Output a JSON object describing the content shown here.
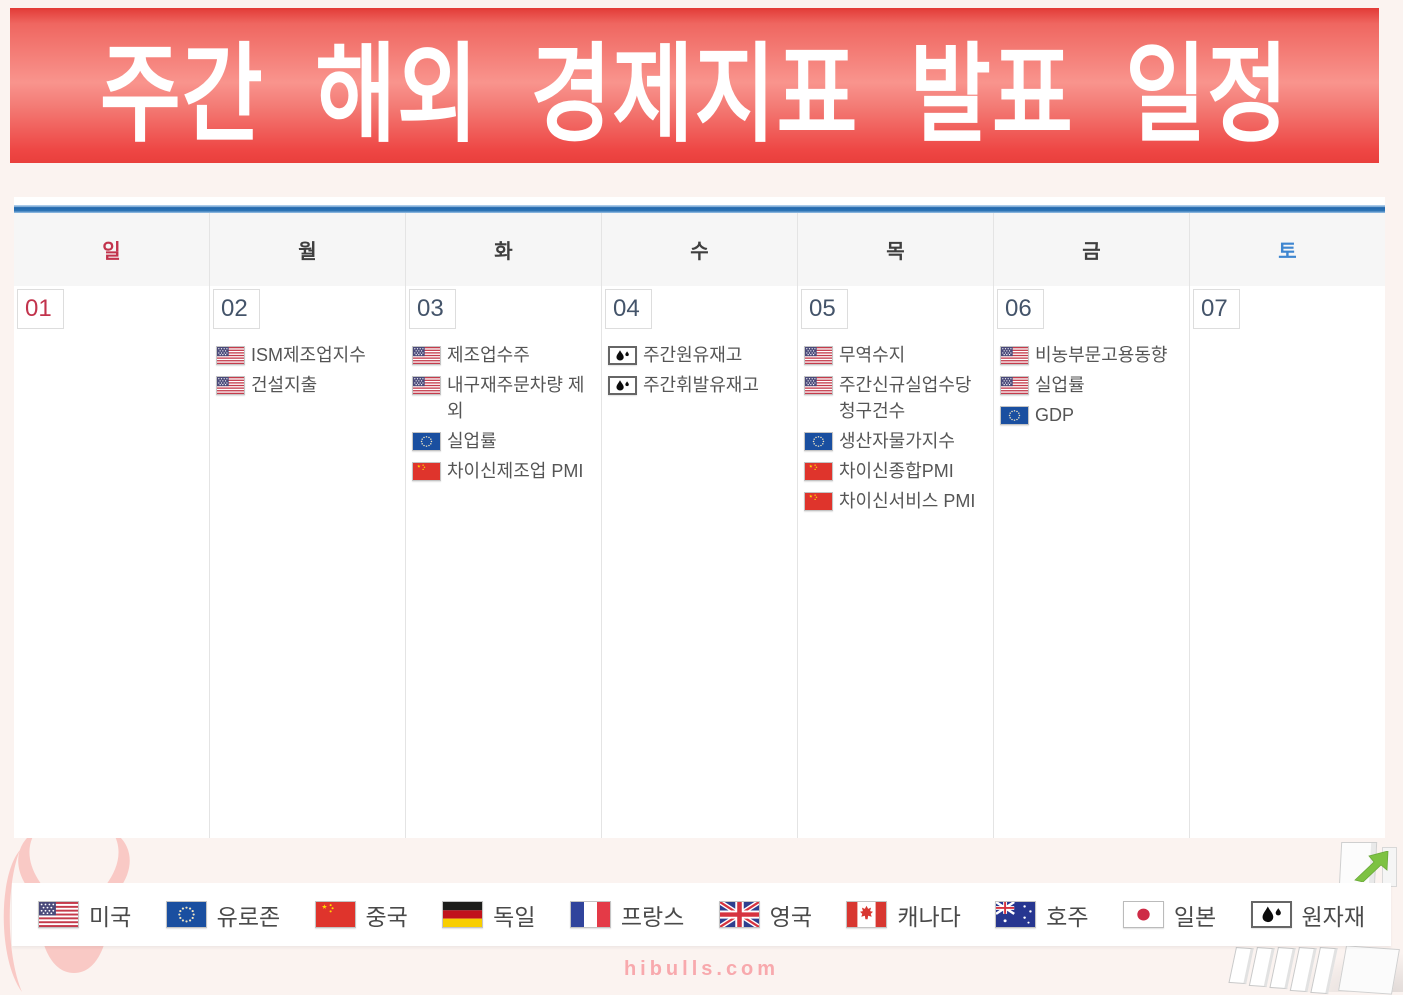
{
  "title": "주간 해외 경제지표 발표 일정",
  "calendar": {
    "day_headers": [
      "일",
      "월",
      "화",
      "수",
      "목",
      "금",
      "토"
    ],
    "days": [
      {
        "date": "01",
        "entries": []
      },
      {
        "date": "02",
        "entries": [
          {
            "icon": "us",
            "label": "ISM제조업지수"
          },
          {
            "icon": "us",
            "label": "건설지출"
          }
        ]
      },
      {
        "date": "03",
        "entries": [
          {
            "icon": "us",
            "label": "제조업수주"
          },
          {
            "icon": "us",
            "label": "내구재주문차량 제외"
          },
          {
            "icon": "eu",
            "label": "실업률"
          },
          {
            "icon": "cn",
            "label": "차이신제조업 PMI"
          }
        ]
      },
      {
        "date": "04",
        "entries": [
          {
            "icon": "oil",
            "label": "주간원유재고"
          },
          {
            "icon": "oil",
            "label": "주간휘발유재고"
          }
        ]
      },
      {
        "date": "05",
        "entries": [
          {
            "icon": "us",
            "label": "무역수지"
          },
          {
            "icon": "us",
            "label": "주간신규실업수당청구건수"
          },
          {
            "icon": "eu",
            "label": "생산자물가지수"
          },
          {
            "icon": "cn",
            "label": "차이신종합PMI"
          },
          {
            "icon": "cn",
            "label": "차이신서비스 PMI"
          }
        ]
      },
      {
        "date": "06",
        "entries": [
          {
            "icon": "us",
            "label": "비농부문고용동향"
          },
          {
            "icon": "us",
            "label": "실업률"
          },
          {
            "icon": "eu",
            "label": "GDP"
          }
        ]
      },
      {
        "date": "07",
        "entries": []
      }
    ]
  },
  "legend": [
    {
      "icon": "us",
      "label": "미국"
    },
    {
      "icon": "eu",
      "label": "유로존"
    },
    {
      "icon": "cn",
      "label": "중국"
    },
    {
      "icon": "de",
      "label": "독일"
    },
    {
      "icon": "fr",
      "label": "프랑스"
    },
    {
      "icon": "gb",
      "label": "영국"
    },
    {
      "icon": "ca",
      "label": "캐나다"
    },
    {
      "icon": "au",
      "label": "호주"
    },
    {
      "icon": "jp",
      "label": "일본"
    },
    {
      "icon": "oil",
      "label": "원자재"
    }
  ],
  "footer": {
    "site": "hibulls.com"
  },
  "colors": {
    "banner_red": "#ee4643",
    "sunday_red": "#c2334c",
    "saturday_blue": "#3e86d0",
    "weekday_gray": "#3f3f3f",
    "date_slate": "#44546a",
    "entry_text": "#555555",
    "rule_blue": "#2e75b6",
    "page_bg": "#fbf3f0",
    "footer_pink": "#f8a9ad"
  }
}
